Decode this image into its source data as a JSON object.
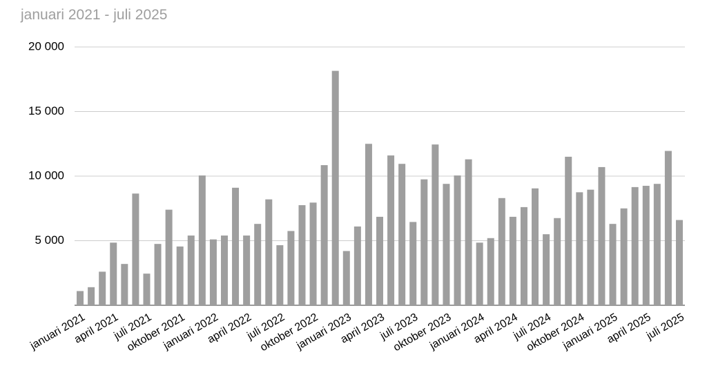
{
  "chart_data": {
    "type": "bar",
    "title": "januari 2021 - juli 2025",
    "categories": [
      "januari 2021",
      null,
      null,
      "april 2021",
      null,
      null,
      "juli 2021",
      null,
      null,
      "oktober 2021",
      null,
      null,
      "januari 2022",
      null,
      null,
      "april 2022",
      null,
      null,
      "juli 2022",
      null,
      null,
      "oktober 2022",
      null,
      null,
      "januari 2023",
      null,
      null,
      "april 2023",
      null,
      null,
      "juli 2023",
      null,
      null,
      "oktober 2023",
      null,
      null,
      "januari 2024",
      null,
      null,
      "april 2024",
      null,
      null,
      "juli 2024",
      null,
      null,
      "oktober 2024",
      null,
      null,
      "januari 2025",
      null,
      null,
      "april 2025",
      null,
      null,
      "juli 2025"
    ],
    "values": [
      1100,
      1400,
      2600,
      4850,
      3200,
      8650,
      2450,
      4750,
      7400,
      4550,
      5400,
      10050,
      5100,
      5400,
      9100,
      5400,
      6300,
      8200,
      4650,
      5750,
      7750,
      7950,
      10850,
      18150,
      4200,
      6100,
      12500,
      6850,
      11600,
      10950,
      6450,
      9750,
      12450,
      9400,
      10050,
      11300,
      4850,
      5200,
      8300,
      6850,
      7600,
      9050,
      5500,
      6750,
      11500,
      8750,
      8950,
      10700,
      6300,
      7500,
      9150,
      9250,
      9400,
      11950,
      6600
    ],
    "color": "#9e9e9e",
    "ylim": [
      0,
      20000
    ],
    "yticks": [
      {
        "value": 5000,
        "label": "5 000"
      },
      {
        "value": 10000,
        "label": "10 000"
      },
      {
        "value": 15000,
        "label": "15 000"
      },
      {
        "value": 20000,
        "label": "20 000"
      }
    ],
    "grid": true
  }
}
